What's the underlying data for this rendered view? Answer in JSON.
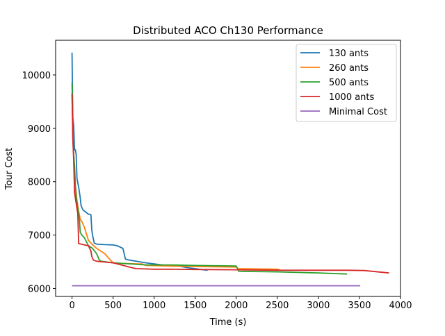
{
  "chart_data": {
    "type": "line",
    "title": "Distributed ACO Ch130 Performance",
    "xlabel": "Time (s)",
    "ylabel": "Tour Cost",
    "xlim": [
      -200,
      4000
    ],
    "ylim": [
      5850,
      10650
    ],
    "xticks": [
      0,
      500,
      1000,
      1500,
      2000,
      2500,
      3000,
      3500,
      4000
    ],
    "yticks": [
      6000,
      7000,
      8000,
      9000,
      10000
    ],
    "grid": false,
    "legend_position": "top-right",
    "series": [
      {
        "name": "130 ants",
        "color": "#1f77b4",
        "x": [
          0,
          5,
          10,
          20,
          30,
          40,
          50,
          60,
          70,
          80,
          100,
          110,
          130,
          150,
          200,
          220,
          230,
          240,
          250,
          270,
          300,
          400,
          500,
          550,
          620,
          650,
          700,
          900,
          1100,
          1150,
          1200,
          1300,
          1400,
          1500,
          1600,
          1650
        ],
        "y": [
          10420,
          9700,
          9200,
          9050,
          8600,
          8600,
          8520,
          8060,
          7980,
          7900,
          7700,
          7550,
          7480,
          7450,
          7390,
          7390,
          7380,
          7100,
          7000,
          6850,
          6830,
          6820,
          6815,
          6800,
          6750,
          6550,
          6530,
          6480,
          6440,
          6430,
          6420,
          6420,
          6390,
          6370,
          6350,
          6340
        ]
      },
      {
        "name": "260 ants",
        "color": "#ff7f0e",
        "x": [
          0,
          5,
          10,
          20,
          30,
          40,
          60,
          80,
          100,
          120,
          150,
          200,
          250,
          300,
          350,
          400,
          450,
          500,
          600,
          800,
          850,
          900,
          1200,
          1500,
          2000,
          2020,
          2500,
          2530
        ],
        "y": [
          9650,
          9300,
          8900,
          8500,
          8200,
          7950,
          7650,
          7450,
          7300,
          7250,
          7150,
          6900,
          6820,
          6750,
          6700,
          6650,
          6560,
          6480,
          6470,
          6460,
          6460,
          6430,
          6420,
          6410,
          6400,
          6370,
          6360,
          6350
        ]
      },
      {
        "name": "500 ants",
        "color": "#2ca02c",
        "x": [
          0,
          5,
          10,
          20,
          30,
          40,
          50,
          70,
          90,
          100,
          120,
          150,
          200,
          250,
          300,
          330,
          350,
          400,
          500,
          800,
          900,
          1200,
          1500,
          2000,
          2030,
          2500,
          3000,
          3350
        ],
        "y": [
          9850,
          9400,
          8800,
          8500,
          8300,
          7950,
          7700,
          7500,
          7300,
          7050,
          7000,
          6950,
          6800,
          6750,
          6650,
          6540,
          6510,
          6500,
          6480,
          6450,
          6440,
          6440,
          6430,
          6420,
          6320,
          6310,
          6290,
          6270
        ]
      },
      {
        "name": "1000 ants",
        "color": "#d62728",
        "x": [
          0,
          5,
          10,
          20,
          30,
          40,
          50,
          60,
          70,
          80,
          200,
          230,
          240,
          260,
          300,
          500,
          600,
          700,
          780,
          900,
          1000,
          1200,
          1500,
          2000,
          2100,
          2500,
          3000,
          3350,
          3560,
          3860
        ],
        "y": [
          9650,
          9200,
          8800,
          8400,
          7800,
          7700,
          7600,
          7500,
          7400,
          6840,
          6800,
          6700,
          6600,
          6530,
          6510,
          6480,
          6440,
          6400,
          6370,
          6365,
          6360,
          6360,
          6355,
          6350,
          6345,
          6340,
          6340,
          6340,
          6335,
          6290
        ]
      },
      {
        "name": "Minimal Cost",
        "color": "#9467bd",
        "x": [
          0,
          3510
        ],
        "y": [
          6050,
          6050
        ]
      }
    ]
  }
}
